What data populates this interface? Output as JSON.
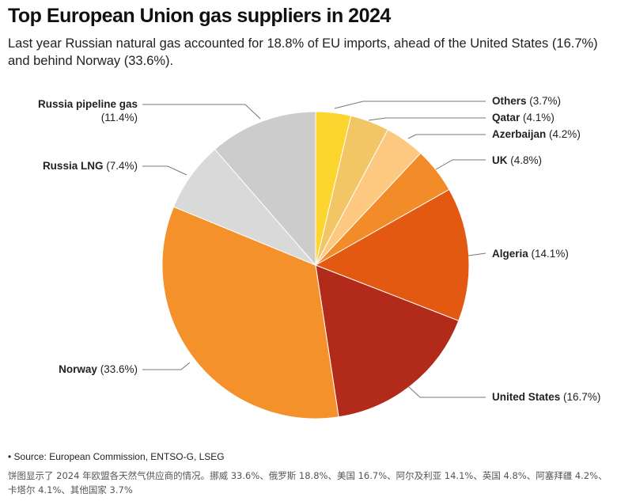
{
  "title": "Top European Union gas suppliers in 2024",
  "subtitle": "Last year Russian natural gas accounted for 18.8% of EU imports, ahead of the United States (16.7%) and behind Norway (33.6%).",
  "source": "• Source: European Commission, ENTSO-G, LSEG",
  "note": "饼图显示了 2024 年欧盟各天然气供应商的情况。挪威 33.6%、俄罗斯 18.8%、美国 16.7%、阿尔及利亚 14.1%、英国 4.8%、阿塞拜疆 4.2%、卡塔尔 4.1%、其他国家 3.7%",
  "chart_data": {
    "type": "pie",
    "title": "Top European Union gas suppliers in 2024",
    "unit": "%",
    "slices": [
      {
        "name": "Others",
        "value": 3.7,
        "label": "(3.7%)",
        "color": "#fdd52f"
      },
      {
        "name": "Qatar",
        "value": 4.1,
        "label": "(4.1%)",
        "color": "#f2c565"
      },
      {
        "name": "Azerbaijan",
        "value": 4.2,
        "label": "(4.2%)",
        "color": "#fdc880"
      },
      {
        "name": "UK",
        "value": 4.8,
        "label": "(4.8%)",
        "color": "#f28c28"
      },
      {
        "name": "Algeria",
        "value": 14.1,
        "label": "(14.1%)",
        "color": "#e35912"
      },
      {
        "name": "United States",
        "value": 16.7,
        "label": "(16.7%)",
        "color": "#b22a19"
      },
      {
        "name": "Norway",
        "value": 33.6,
        "label": "(33.6%)",
        "color": "#f4912a"
      },
      {
        "name": "Russia LNG",
        "value": 7.4,
        "label": "(7.4%)",
        "color": "#d9d9d9"
      },
      {
        "name": "Russia pipeline gas",
        "value": 11.4,
        "label": "(11.4%)",
        "color": "#cccccc"
      }
    ]
  }
}
